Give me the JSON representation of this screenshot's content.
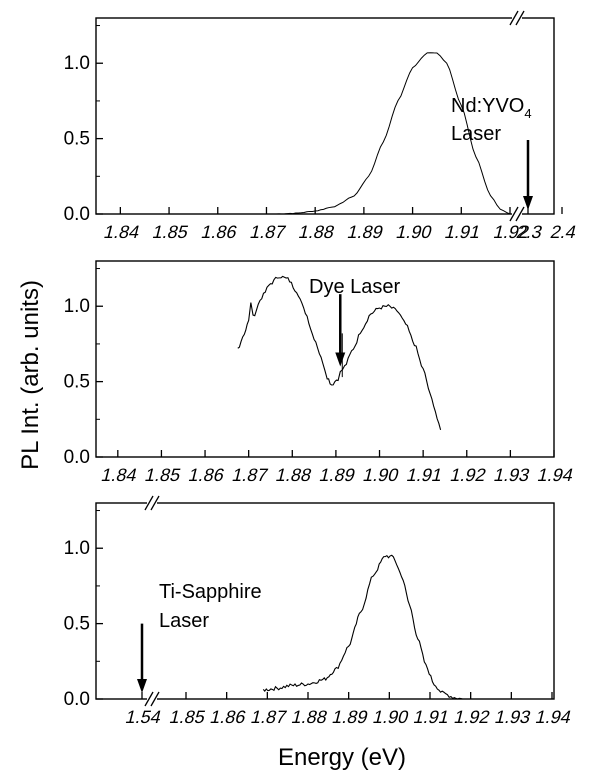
{
  "figure": {
    "ylabel": "PL Int. (arb. units)",
    "xlabel": "Energy (eV)"
  },
  "chart_data": [
    {
      "type": "line",
      "xlim": [
        1.835,
        2.4
      ],
      "ylim": [
        0,
        1.3
      ],
      "axis_break": {
        "after_x": 1.92,
        "before_x": 2.3
      },
      "x_ticks": [
        1.84,
        1.85,
        1.86,
        1.87,
        1.88,
        1.89,
        1.9,
        1.91,
        1.92,
        2.3,
        2.4
      ],
      "x_tick_labels": [
        "1.84",
        "1.85",
        "1.86",
        "1.87",
        "1.88",
        "1.89",
        "1.90",
        "1.91",
        "1.92",
        "2.3",
        "2.4"
      ],
      "y_ticks": [
        0.0,
        0.5,
        1.0
      ],
      "y_tick_labels": [
        "0.0",
        "0.5",
        "1.0"
      ],
      "series": [
        {
          "points": [
            [
              1.872,
              0.0
            ],
            [
              1.876,
              0.005
            ],
            [
              1.88,
              0.02
            ],
            [
              1.884,
              0.05
            ],
            [
              1.888,
              0.12
            ],
            [
              1.891,
              0.25
            ],
            [
              1.894,
              0.48
            ],
            [
              1.897,
              0.75
            ],
            [
              1.9,
              0.97
            ],
            [
              1.903,
              1.07
            ],
            [
              1.905,
              1.07
            ],
            [
              1.907,
              1.0
            ],
            [
              1.91,
              0.72
            ],
            [
              1.913,
              0.38
            ],
            [
              1.916,
              0.12
            ],
            [
              1.918,
              0.03
            ],
            [
              1.92,
              0.0
            ]
          ]
        }
      ],
      "annotation": {
        "text_main": "Nd:YVO",
        "text_sub": "4",
        "text_line2": "Laser",
        "arrow_x": 2.33,
        "arrow_y_from": 0.52,
        "arrow_y_to": 0.02
      }
    },
    {
      "type": "line",
      "xlim": [
        1.835,
        1.94
      ],
      "ylim": [
        0,
        1.3
      ],
      "x_ticks": [
        1.84,
        1.85,
        1.86,
        1.87,
        1.88,
        1.89,
        1.9,
        1.91,
        1.92,
        1.93,
        1.94
      ],
      "x_tick_labels": [
        "1.84",
        "1.85",
        "1.86",
        "1.87",
        "1.88",
        "1.89",
        "1.90",
        "1.91",
        "1.92",
        "1.93",
        "1.94"
      ],
      "y_ticks": [
        0.0,
        0.5,
        1.0
      ],
      "y_tick_labels": [
        "0.0",
        "0.5",
        "1.0"
      ],
      "series": [
        {
          "points": [
            [
              1.8675,
              0.72
            ],
            [
              1.869,
              0.82
            ],
            [
              1.87,
              0.9
            ],
            [
              1.8705,
              1.03
            ],
            [
              1.871,
              0.93
            ],
            [
              1.873,
              1.06
            ],
            [
              1.875,
              1.15
            ],
            [
              1.877,
              1.2
            ],
            [
              1.879,
              1.18
            ],
            [
              1.881,
              1.1
            ],
            [
              1.883,
              0.96
            ],
            [
              1.885,
              0.79
            ],
            [
              1.887,
              0.63
            ],
            [
              1.888,
              0.53
            ],
            [
              1.889,
              0.48
            ],
            [
              1.8905,
              0.52
            ],
            [
              1.891,
              0.56
            ],
            [
              1.892,
              0.6
            ],
            [
              1.894,
              0.72
            ],
            [
              1.896,
              0.85
            ],
            [
              1.898,
              0.95
            ],
            [
              1.9,
              0.99
            ],
            [
              1.902,
              1.0
            ],
            [
              1.904,
              0.97
            ],
            [
              1.906,
              0.88
            ],
            [
              1.908,
              0.75
            ],
            [
              1.91,
              0.58
            ],
            [
              1.912,
              0.38
            ],
            [
              1.914,
              0.18
            ]
          ]
        }
      ],
      "annotation": {
        "text": "Dye Laser",
        "arrow_x": 1.891,
        "arrow_y_from": 1.08,
        "arrow_y_to": 0.6
      }
    },
    {
      "type": "line",
      "xlim": [
        1.54,
        1.94
      ],
      "ylim": [
        0,
        1.3
      ],
      "axis_break": {
        "after_x": 1.54,
        "before_x": 1.85
      },
      "x_ticks": [
        1.54,
        1.85,
        1.86,
        1.87,
        1.88,
        1.89,
        1.9,
        1.91,
        1.92,
        1.93,
        1.94
      ],
      "x_tick_labels": [
        "1.54",
        "1.85",
        "1.86",
        "1.87",
        "1.88",
        "1.89",
        "1.90",
        "1.91",
        "1.92",
        "1.93",
        "1.94"
      ],
      "y_ticks": [
        0.0,
        0.5,
        1.0
      ],
      "y_tick_labels": [
        "0.0",
        "0.5",
        "1.0"
      ],
      "series": [
        {
          "points": [
            [
              1.869,
              0.06
            ],
            [
              1.872,
              0.07
            ],
            [
              1.876,
              0.09
            ],
            [
              1.88,
              0.1
            ],
            [
              1.884,
              0.13
            ],
            [
              1.887,
              0.2
            ],
            [
              1.89,
              0.35
            ],
            [
              1.893,
              0.58
            ],
            [
              1.896,
              0.82
            ],
            [
              1.899,
              0.95
            ],
            [
              1.901,
              0.94
            ],
            [
              1.903,
              0.82
            ],
            [
              1.905,
              0.62
            ],
            [
              1.907,
              0.4
            ],
            [
              1.909,
              0.22
            ],
            [
              1.911,
              0.1
            ],
            [
              1.913,
              0.04
            ],
            [
              1.916,
              0.01
            ],
            [
              1.918,
              0.0
            ]
          ]
        }
      ],
      "annotation": {
        "text_line1": "Ti-Sapphire",
        "text_line2": "Laser",
        "arrow_x": 1.54,
        "arrow_y_from": 0.5,
        "arrow_y_to": 0.02
      }
    }
  ]
}
